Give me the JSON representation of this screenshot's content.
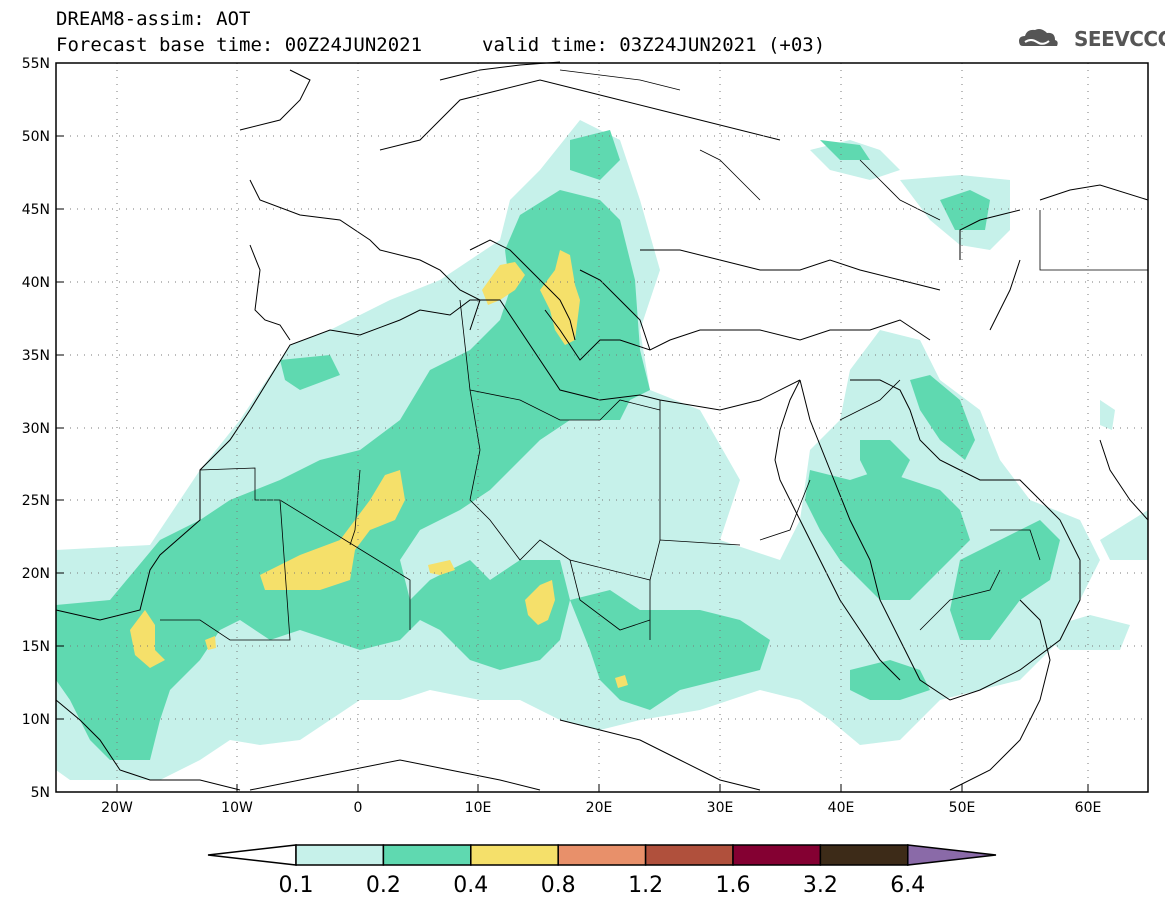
{
  "header": {
    "title": "DREAM8-assim: AOT",
    "base_time": "Forecast base time: 00Z24JUN2021",
    "valid_time": "valid time: 03Z24JUN2021 (+03)",
    "logo_text": "SEEVCCC"
  },
  "map": {
    "lat_labels": [
      "55N",
      "50N",
      "45N",
      "40N",
      "35N",
      "30N",
      "25N",
      "20N",
      "15N",
      "10N",
      "5N"
    ],
    "lon_labels": [
      "20W",
      "10W",
      "0",
      "10E",
      "20E",
      "30E",
      "40E",
      "50E",
      "60E"
    ],
    "extent": {
      "lon_min": -25,
      "lon_max": 65,
      "lat_min": 5,
      "lat_max": 55
    },
    "field": "AOT"
  },
  "colorbar": {
    "labels": [
      "0.1",
      "0.2",
      "0.4",
      "0.8",
      "1.2",
      "1.6",
      "3.2",
      "6.4"
    ],
    "colors": [
      "#c6f1ea",
      "#5fd9b0",
      "#f5e06a",
      "#e8906a",
      "#b0503c",
      "#840032",
      "#3d2b18"
    ],
    "under_color": "#ffffff",
    "over_color": "#8a6aa8"
  },
  "legend_colors": {
    "level_01": "#c6f1ea",
    "level_02": "#5fd9b0",
    "level_04": "#f5e06a"
  }
}
